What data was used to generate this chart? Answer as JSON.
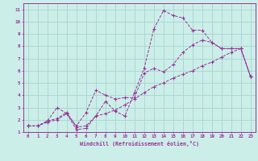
{
  "xlabel": "Windchill (Refroidissement éolien,°C)",
  "bg_color": "#cceee8",
  "grid_color": "#aad8d2",
  "line_color": "#993399",
  "xlim": [
    -0.5,
    23.5
  ],
  "ylim": [
    1,
    11.5
  ],
  "xticks": [
    0,
    1,
    2,
    3,
    4,
    5,
    6,
    7,
    8,
    9,
    10,
    11,
    12,
    13,
    14,
    15,
    16,
    17,
    18,
    19,
    20,
    21,
    22,
    23
  ],
  "yticks": [
    1,
    2,
    3,
    4,
    5,
    6,
    7,
    8,
    9,
    10,
    11
  ],
  "series": [
    {
      "x": [
        0,
        1,
        2,
        3,
        4,
        5,
        6,
        7,
        8,
        9,
        10,
        11,
        12,
        13,
        14,
        15,
        16,
        17,
        18,
        19,
        20,
        21,
        22,
        23
      ],
      "y": [
        1.5,
        1.5,
        1.8,
        2.0,
        2.5,
        1.2,
        1.3,
        2.3,
        3.5,
        2.7,
        2.3,
        4.2,
        6.2,
        9.4,
        10.9,
        10.5,
        10.3,
        9.3,
        9.3,
        8.3,
        7.8,
        7.8,
        7.8,
        5.5
      ]
    },
    {
      "x": [
        0,
        1,
        2,
        3,
        4,
        5,
        6,
        7,
        8,
        9,
        10,
        11,
        12,
        13,
        14,
        15,
        16,
        17,
        18,
        19,
        20,
        21,
        22,
        23
      ],
      "y": [
        1.5,
        1.5,
        1.9,
        3.0,
        2.5,
        1.5,
        2.6,
        4.4,
        4.0,
        3.7,
        3.8,
        3.8,
        5.8,
        6.2,
        5.9,
        6.5,
        7.5,
        8.1,
        8.5,
        8.3,
        7.8,
        7.8,
        7.8,
        5.5
      ]
    },
    {
      "x": [
        0,
        1,
        2,
        3,
        4,
        5,
        6,
        7,
        8,
        9,
        10,
        11,
        12,
        13,
        14,
        15,
        16,
        17,
        18,
        19,
        20,
        21,
        22,
        23
      ],
      "y": [
        1.5,
        1.5,
        1.9,
        2.1,
        2.6,
        1.4,
        1.5,
        2.3,
        2.5,
        2.8,
        3.2,
        3.7,
        4.2,
        4.7,
        5.0,
        5.4,
        5.7,
        6.0,
        6.4,
        6.7,
        7.1,
        7.5,
        7.8,
        5.5
      ]
    }
  ]
}
